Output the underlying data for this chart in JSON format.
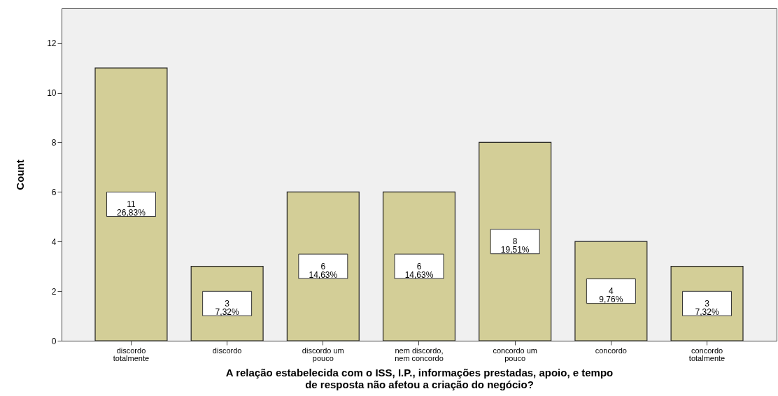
{
  "chart_data": {
    "type": "bar",
    "xlabel": "A relação estabelecida com o ISS, I.P., informações prestadas, apoio, e tempo\nde resposta não afetou a criação do negócio?",
    "ylabel": "Count",
    "categories": [
      "discordo\ntotalmente",
      "discordo",
      "discordo um\npouco",
      "nem discordo,\nnem concordo",
      "concordo um\npouco",
      "concordo",
      "concordo\ntotalmente"
    ],
    "values": [
      11,
      3,
      6,
      6,
      8,
      4,
      3
    ],
    "value_labels": [
      "11\n26,83%",
      "3\n7,32%",
      "6\n14,63%",
      "6\n14,63%",
      "8\n19,51%",
      "4\n9,76%",
      "3\n7,32%"
    ],
    "color": "#d3ce97",
    "ylim": [
      0,
      13.4
    ],
    "yticks": [
      0,
      2,
      4,
      6,
      8,
      10,
      12
    ],
    "grid": false
  }
}
